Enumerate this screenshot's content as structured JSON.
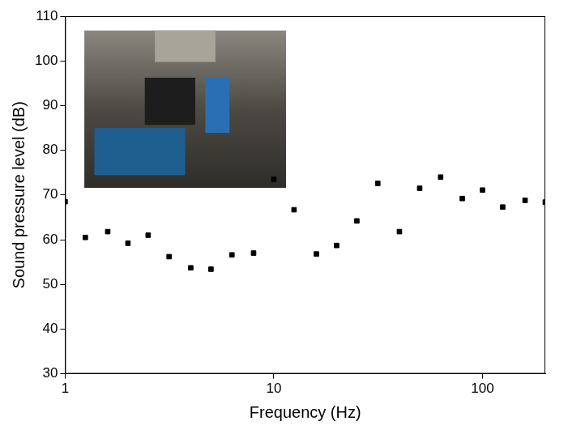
{
  "chart_data": {
    "type": "scatter",
    "x_label": "Frequency (Hz)",
    "y_label": "Sound pressure level (dB)",
    "x": [
      1,
      1.25,
      1.6,
      2,
      2.5,
      3.15,
      4,
      5,
      6.3,
      8,
      10,
      12.5,
      16,
      20,
      25,
      31.5,
      40,
      50,
      63,
      80,
      100,
      125,
      160,
      200
    ],
    "values": [
      68.5,
      60.5,
      61.8,
      59.2,
      61,
      56.2,
      53.7,
      53.4,
      56.6,
      57,
      73.5,
      66.7,
      56.8,
      58.7,
      64.2,
      72.6,
      61.8,
      71.5,
      74,
      69.2,
      71.1,
      67.3,
      68.8,
      68.4
    ],
    "color": "#000000",
    "marker": "square",
    "log": "x",
    "xlim": [
      1,
      200
    ],
    "xticks": [
      1,
      10,
      100
    ],
    "ylim": [
      30,
      110
    ],
    "yticks": [
      30,
      40,
      50,
      60,
      70,
      80,
      90,
      100,
      110
    ],
    "grid": false
  }
}
